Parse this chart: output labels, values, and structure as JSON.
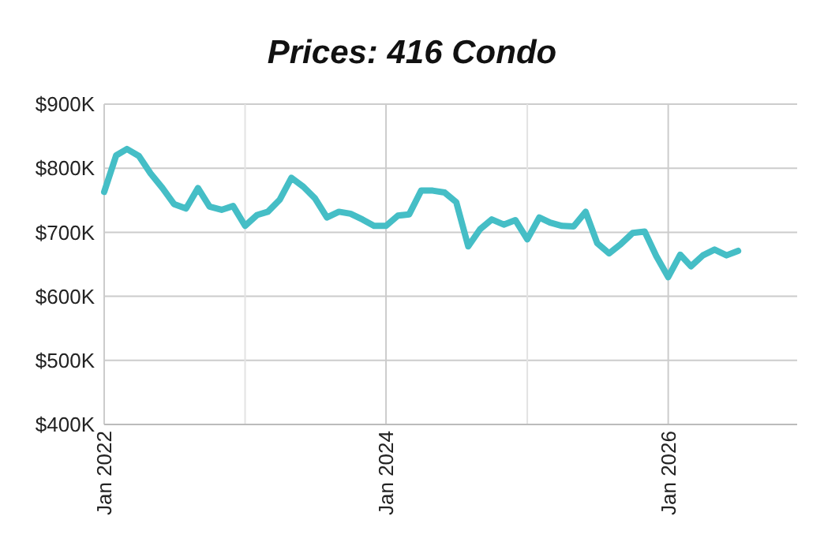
{
  "chart_data": {
    "type": "line",
    "title": "Prices: 416 Condo",
    "x": [
      "2022-01",
      "2022-02",
      "2022-03",
      "2022-04",
      "2022-05",
      "2022-06",
      "2022-07",
      "2022-08",
      "2022-09",
      "2022-10",
      "2022-11",
      "2022-12",
      "2023-01",
      "2023-02",
      "2023-03",
      "2023-04",
      "2023-05",
      "2023-06",
      "2023-07",
      "2023-08",
      "2023-09",
      "2023-10",
      "2023-11",
      "2023-12",
      "2024-01",
      "2024-02",
      "2024-03",
      "2024-04",
      "2024-05",
      "2024-06",
      "2024-07",
      "2024-08",
      "2024-09",
      "2024-10",
      "2024-11",
      "2024-12",
      "2025-01",
      "2025-02",
      "2025-03",
      "2025-04",
      "2025-05",
      "2025-06",
      "2025-07",
      "2025-08",
      "2025-09",
      "2025-10",
      "2025-11",
      "2025-12",
      "2026-01",
      "2026-02",
      "2026-03",
      "2026-04",
      "2026-05",
      "2026-06",
      "2026-07"
    ],
    "series": [
      {
        "color": "#45bec6",
        "values": [
          763000,
          820000,
          830000,
          819000,
          792000,
          769000,
          744000,
          737000,
          769000,
          740000,
          735000,
          741000,
          710000,
          727000,
          732000,
          751000,
          785000,
          771000,
          753000,
          723000,
          732000,
          729000,
          720000,
          710000,
          710000,
          726000,
          728000,
          765000,
          765000,
          762000,
          747000,
          678000,
          705000,
          720000,
          712000,
          719000,
          689000,
          723000,
          715000,
          710000,
          709000,
          732000,
          683000,
          667000,
          682000,
          699000,
          701000,
          663000,
          630000,
          665000,
          647000,
          664000,
          673000,
          664000,
          671000
        ]
      }
    ],
    "xlim": [
      "2022-01",
      "2026-12"
    ],
    "xticks": [
      {
        "value": "2022-01",
        "label": "Jan 2022"
      },
      {
        "value": "2023-01",
        "label": null
      },
      {
        "value": "2024-01",
        "label": "Jan 2024"
      },
      {
        "value": "2025-01",
        "label": null
      },
      {
        "value": "2026-01",
        "label": "Jan 2026"
      }
    ],
    "ylim": [
      400000,
      900000
    ],
    "yticks": [
      {
        "value": 400000,
        "label": "$400K"
      },
      {
        "value": 500000,
        "label": "$500K"
      },
      {
        "value": 600000,
        "label": "$600K"
      },
      {
        "value": 700000,
        "label": "$700K"
      },
      {
        "value": 800000,
        "label": "$800K"
      },
      {
        "value": 900000,
        "label": "$900K"
      }
    ],
    "grid": true,
    "marker": "none",
    "line_style": "solid"
  }
}
